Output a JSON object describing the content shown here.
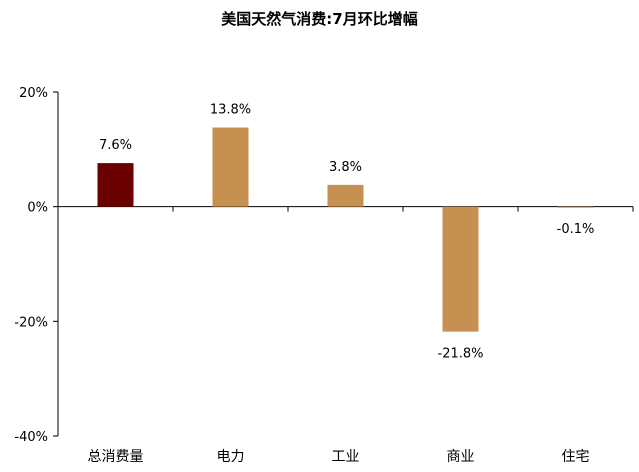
{
  "chart_data": {
    "type": "bar",
    "title": "美国天然气消费:7月环比增幅",
    "xlabel": "",
    "ylabel": "",
    "categories": [
      "总消费量",
      "电力",
      "工业",
      "商业",
      "住宅"
    ],
    "values": [
      7.6,
      13.8,
      3.8,
      -21.8,
      -0.1
    ],
    "data_labels": [
      "7.6%",
      "13.8%",
      "3.8%",
      "-21.8%",
      "-0.1%"
    ],
    "ylim": [
      -40,
      20
    ],
    "yticks": [
      20,
      0,
      -20,
      -40
    ],
    "ytick_labels": [
      "20%",
      "0%",
      "-20%",
      "-40%"
    ],
    "bar_colors": [
      "#6B0000",
      "#C59050",
      "#C59050",
      "#C59050",
      "#C59050"
    ],
    "grid": false,
    "legend": "none"
  }
}
